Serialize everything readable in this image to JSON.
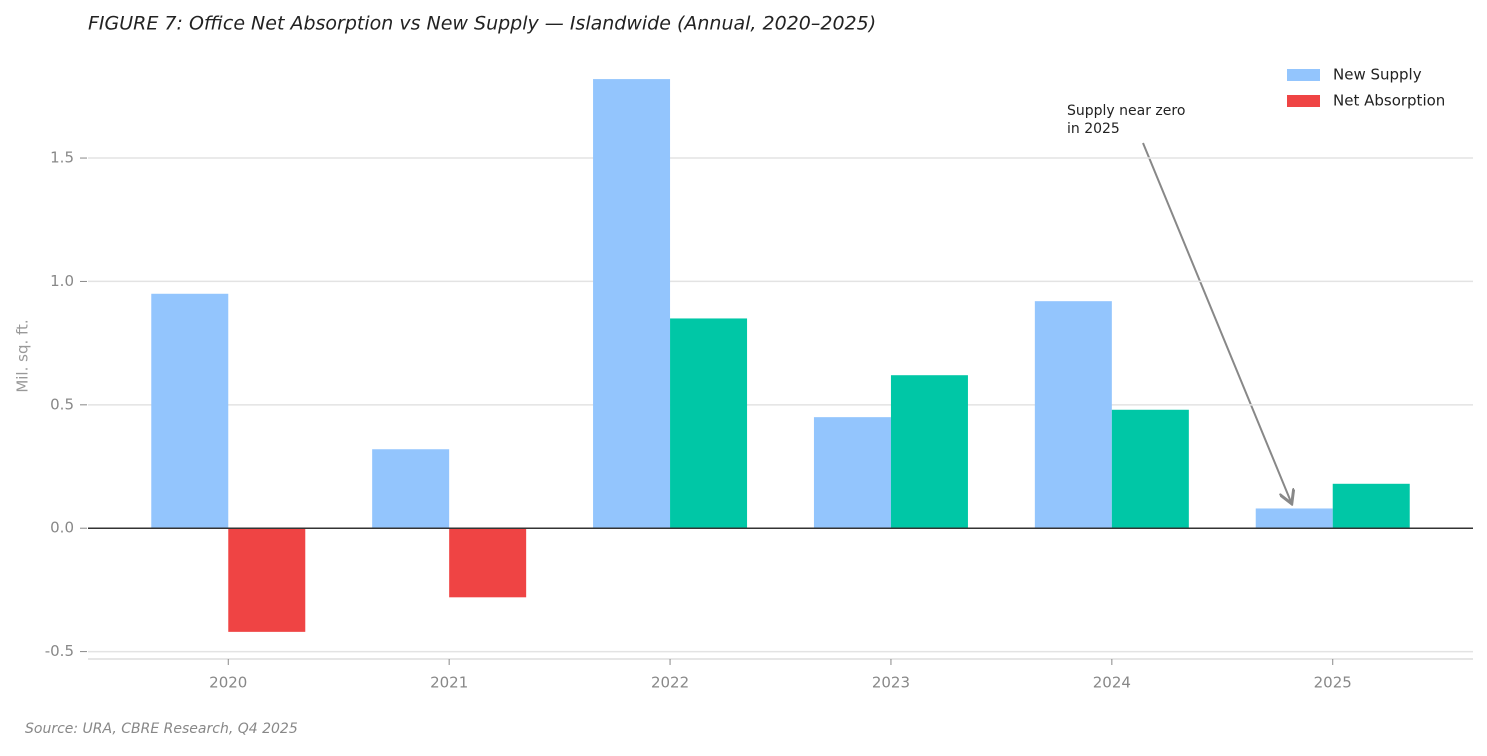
{
  "chart_data": {
    "type": "bar",
    "title": "FIGURE 7: Office Net Absorption vs New Supply — Islandwide (Annual, 2020–2025)",
    "y_label": "Mil. sq. ft.",
    "source": "Source: URA, CBRE Research, Q4 2025",
    "categories": [
      "2020",
      "2021",
      "2022",
      "2023",
      "2024",
      "2025"
    ],
    "series": [
      {
        "name": "New Supply",
        "color": "#93c5fd",
        "values": [
          0.95,
          0.32,
          1.82,
          0.45,
          0.92,
          0.08
        ]
      },
      {
        "name": "Net Absorption",
        "color": "#ef4444",
        "positive_color": "#00c7a6",
        "values": [
          -0.42,
          -0.28,
          0.85,
          0.62,
          0.48,
          0.18
        ]
      }
    ],
    "ylim": [
      -0.53,
      1.95
    ],
    "yticks": [
      -0.5,
      {
        "value": 0,
        "label": "0.0"
      },
      0.5,
      {
        "value": 1,
        "label": "1.0"
      },
      1.5
    ],
    "grid": true,
    "legend": "upper right",
    "annotation": {
      "lines": [
        "Supply near zero",
        "in 2025"
      ]
    }
  }
}
